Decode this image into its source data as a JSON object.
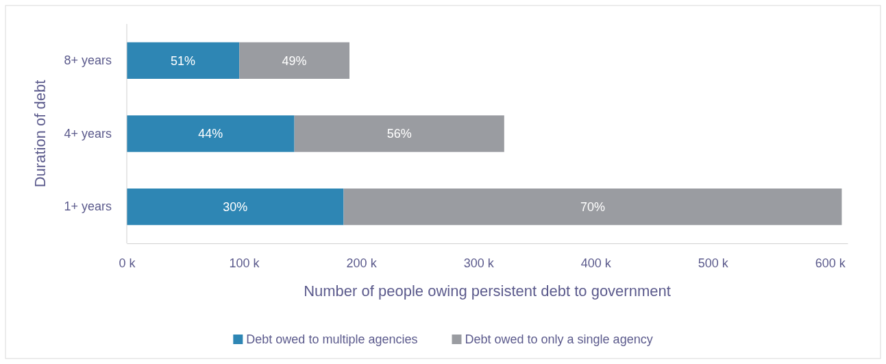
{
  "chart_data": {
    "type": "bar",
    "orientation": "horizontal",
    "stacked": true,
    "xlabel": "Number of people owing persistent debt to government",
    "ylabel": "Duration of debt",
    "categories": [
      "8+ years",
      "4+ years",
      "1+ years"
    ],
    "series": [
      {
        "name": "Debt owed to multiple agencies",
        "color": "#2e86b4",
        "values": [
          96,
          143,
          185
        ]
      },
      {
        "name": "Debt owed to only a single agency",
        "color": "#9a9ca1",
        "values": [
          94,
          179,
          425
        ]
      }
    ],
    "annotations": [
      "51%",
      "49%",
      "44%",
      "56%",
      "30%",
      "70%"
    ],
    "xlim": [
      0,
      615
    ],
    "xticks": [
      {
        "value": 0,
        "label": "0 k"
      },
      {
        "value": 100,
        "label": "100 k"
      },
      {
        "value": 200,
        "label": "200 k"
      },
      {
        "value": 300,
        "label": "300 k"
      },
      {
        "value": 400,
        "label": "400 k"
      },
      {
        "value": 500,
        "label": "500 k"
      },
      {
        "value": 600,
        "label": "600 k"
      }
    ],
    "grid": false,
    "legend": "bottom"
  }
}
